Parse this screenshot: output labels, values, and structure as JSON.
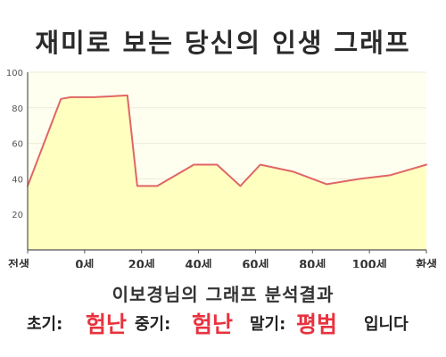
{
  "colors": {
    "line": "#e06666",
    "fill": "#ffffc0",
    "plot_bg": "#fffff0",
    "grid": "#ececd6",
    "axis": "#555555",
    "highlight": "#e8323f"
  },
  "chart_data": {
    "type": "area",
    "title": "재미로 보는 당신의 인생 그래프",
    "xlabel": "",
    "ylabel": "",
    "categories": [
      "전생",
      "0세",
      "20세",
      "40세",
      "60세",
      "80세",
      "100세",
      "환생"
    ],
    "xlim": [
      -10,
      110
    ],
    "ylim": [
      0,
      100
    ],
    "yticks": [
      20,
      40,
      60,
      80,
      100
    ],
    "grid": true,
    "series": [
      {
        "x": [
          -10,
          0,
          3,
          10,
          20,
          23,
          29,
          40,
          47,
          54,
          60,
          70,
          80,
          90,
          99,
          110
        ],
        "y": [
          36,
          85,
          86,
          86,
          87,
          36,
          36,
          48,
          48,
          36,
          48,
          44,
          37,
          40,
          42,
          48
        ]
      }
    ]
  },
  "analysis": {
    "title": "이보경님의 그래프 분석결과",
    "early_label": "초기:",
    "early_value": "험난",
    "middle_label": "중기:",
    "middle_value": "험난",
    "late_label": "말기:",
    "late_value": "평범",
    "suffix": "입니다"
  }
}
